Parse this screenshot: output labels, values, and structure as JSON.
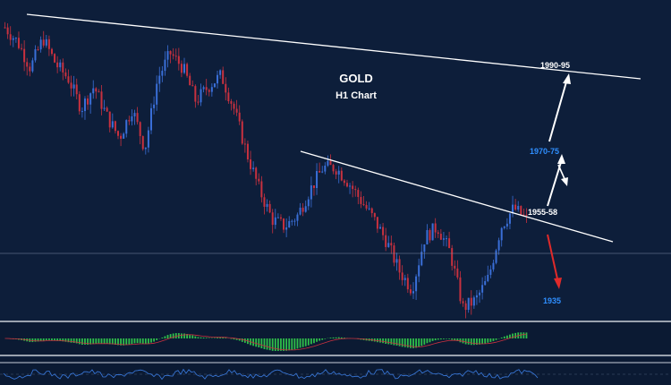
{
  "chart_data": {
    "type": "candlestick",
    "title": "GOLD",
    "subtitle": "H1 Chart",
    "colors": {
      "background": "#0d1e3a",
      "bull_candle": "#3a6fd8",
      "bear_candle": "#c8313f",
      "trendline": "#ffffff",
      "histogram": "#2fbf4a",
      "indicator_line": "#3a7be0",
      "arrow_up": "#ffffff",
      "arrow_down": "#e02a2a",
      "level_text_white": "#ffffff",
      "level_text_blue": "#2f8fff"
    },
    "annotations": [
      {
        "text": "1990-95",
        "color": "white"
      },
      {
        "text": "1970-75",
        "color": "blue"
      },
      {
        "text": "1955-58",
        "color": "white"
      },
      {
        "text": "1935",
        "color": "blue"
      }
    ],
    "price_path": [
      1988,
      1984,
      1977,
      1985,
      1978,
      1974,
      1966,
      1972,
      1964,
      1958,
      1966,
      1955,
      1974,
      1981,
      1977,
      1968,
      1972,
      1975,
      1966,
      1954,
      1944,
      1936,
      1934,
      1937,
      1944,
      1950,
      1950,
      1946,
      1941,
      1936,
      1930,
      1922,
      1917,
      1931,
      1934,
      1927,
      1912,
      1914,
      1920,
      1934,
      1939,
      1936
    ],
    "last_price": 1938
  }
}
